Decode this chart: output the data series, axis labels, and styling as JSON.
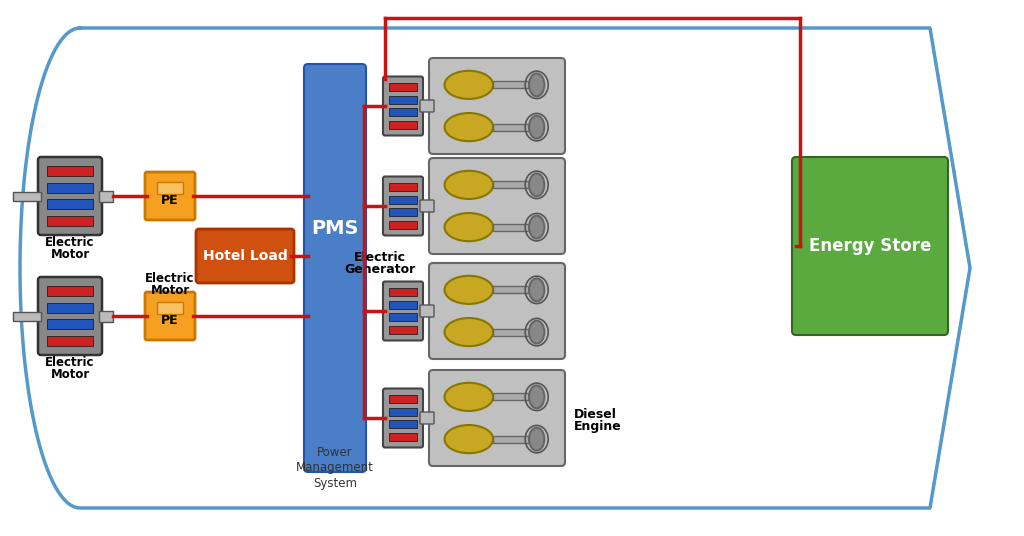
{
  "background_color": "#ffffff",
  "ship_outline_color": "#5599cc",
  "red_wire_color": "#cc1111",
  "pms_color": "#4a7ec7",
  "pms_label": "PMS",
  "pms_sublabel": "Power\nManagement\nSystem",
  "hotel_load_color": "#d05010",
  "hotel_load_label": "Hotel Load",
  "pe_color": "#f5a020",
  "pe_border_color": "#cc7700",
  "pe_label": "PE",
  "energy_store_color": "#5aaa40",
  "energy_store_border_color": "#336622",
  "energy_store_label": "Energy Store",
  "electric_motor_label1": "Electric",
  "electric_motor_label2": "Motor",
  "electric_generator_label1": "Electric",
  "electric_generator_label2": "Generator",
  "diesel_engine_label1": "Diesel",
  "diesel_engine_label2": "Engine",
  "motor_red": "#cc2222",
  "motor_blue": "#2255bb",
  "motor_gray": "#999999",
  "engine_yellow": "#c8a822",
  "engine_gray": "#aaaaaa",
  "engine_dark": "#777777",
  "engine_light": "#c0c0c0"
}
